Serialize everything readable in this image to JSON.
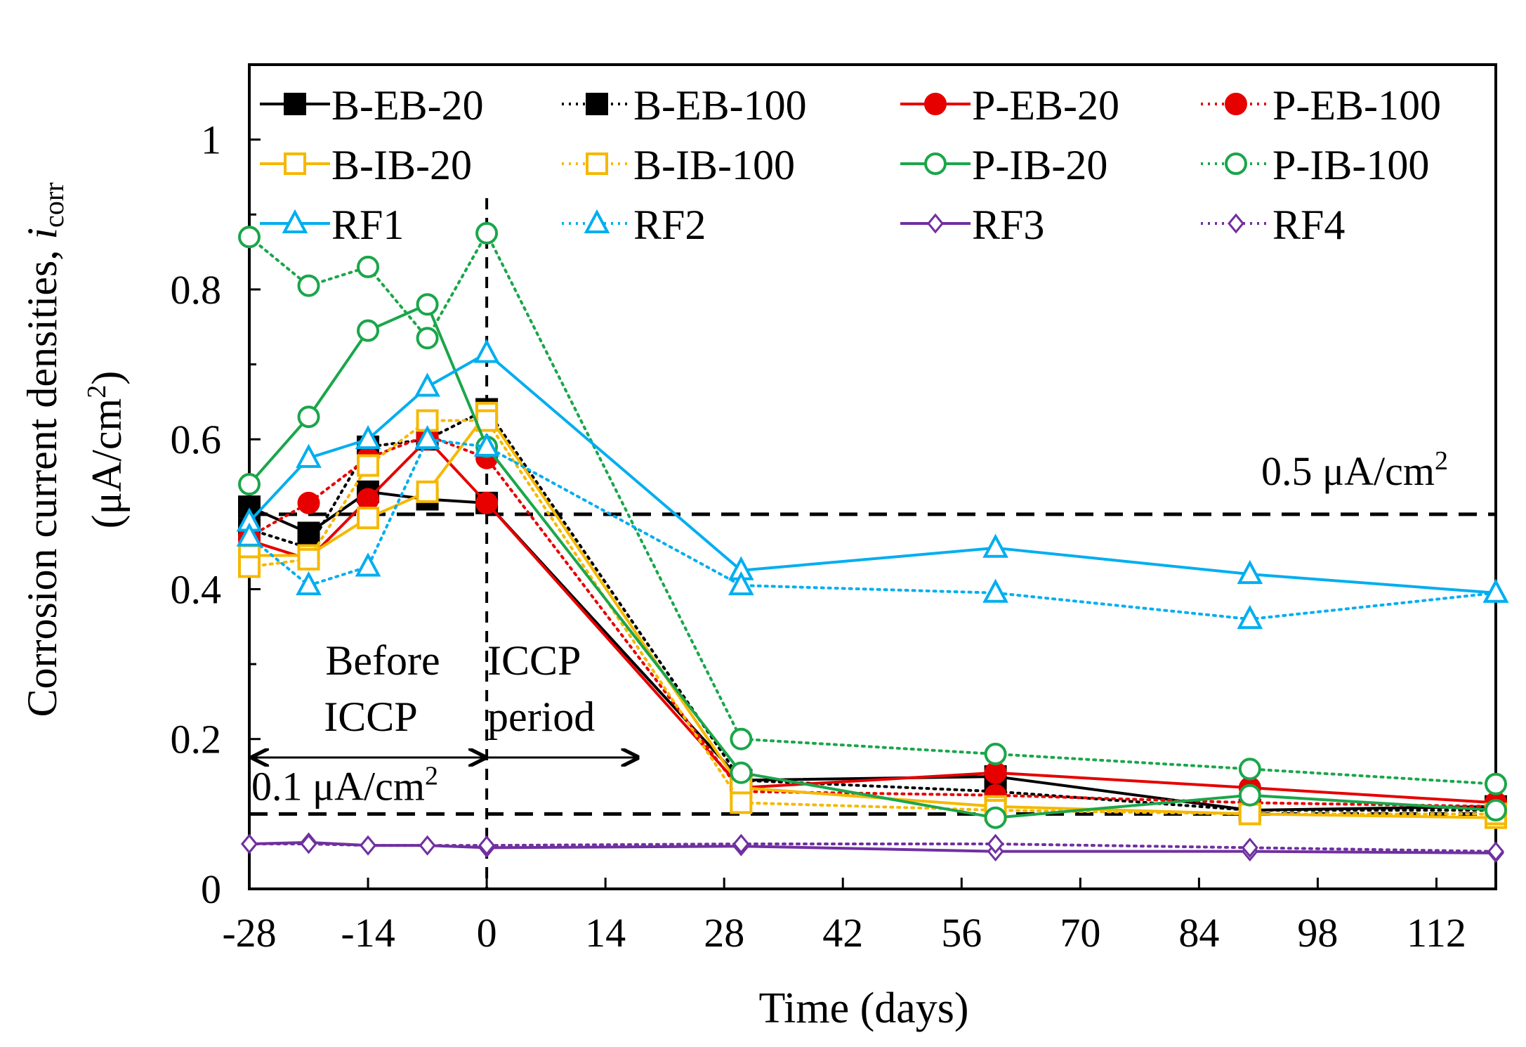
{
  "chart_data": {
    "type": "line",
    "xlabel": "Time (days)",
    "ylabel_line1_prefix": "Corrosion current densities, ",
    "ylabel_line1_var": "i",
    "ylabel_line1_sub": "corr",
    "ylabel_line2_prefix": "(μA/cm",
    "ylabel_line2_sup": "2",
    "ylabel_line2_suffix": ")",
    "xlim": [
      -28,
      119
    ],
    "ylim": [
      0,
      1.1
    ],
    "xticks": [
      -28,
      -14,
      0,
      14,
      28,
      42,
      56,
      70,
      84,
      98,
      112
    ],
    "yticks": [
      0,
      0.2,
      0.4,
      0.6,
      0.8,
      1
    ],
    "ytick_labels": [
      "0",
      "0.2",
      "0.4",
      "0.6",
      "0.8",
      "1"
    ],
    "grid": false,
    "legend_position": "top, inside plot, 4 columns",
    "reference_lines": [
      {
        "y": 0.5,
        "label": "0.5 μA/cm",
        "sup": "2"
      },
      {
        "y": 0.1,
        "label": "0.1 μA/cm",
        "sup": "2"
      }
    ],
    "vertical_line": {
      "x": 0
    },
    "annotations": [
      {
        "id": "before",
        "lines": [
          "Before",
          "ICCP"
        ]
      },
      {
        "id": "during",
        "lines": [
          "ICCP",
          "period"
        ]
      }
    ],
    "arrows": [
      {
        "from": -28,
        "to": 0,
        "double": true
      },
      {
        "from": 0,
        "to": 18,
        "double": false
      }
    ],
    "series": [
      {
        "name": "B-EB-20",
        "color": "#000000",
        "dash": "solid",
        "marker": "square",
        "fill": true,
        "x": [
          -28,
          -21,
          -14,
          -7,
          0,
          30,
          60,
          90,
          119
        ],
        "y": [
          0.51,
          0.475,
          0.53,
          0.52,
          0.515,
          0.145,
          0.15,
          0.105,
          0.11
        ]
      },
      {
        "name": "B-EB-100",
        "color": "#000000",
        "dash": "dotted",
        "marker": "square",
        "fill": true,
        "x": [
          -28,
          -21,
          -14,
          -7,
          0,
          30,
          60,
          90,
          119
        ],
        "y": [
          0.48,
          0.455,
          0.59,
          0.6,
          0.64,
          0.145,
          0.13,
          0.105,
          0.105
        ]
      },
      {
        "name": "P-EB-20",
        "color": "#e60000",
        "dash": "solid",
        "marker": "circle",
        "fill": true,
        "x": [
          -28,
          -21,
          -14,
          -7,
          0,
          30,
          60,
          90,
          119
        ],
        "y": [
          0.465,
          0.44,
          0.52,
          0.6,
          0.515,
          0.135,
          0.155,
          0.135,
          0.115
        ]
      },
      {
        "name": "P-EB-100",
        "color": "#e60000",
        "dash": "dotted",
        "marker": "circle",
        "fill": true,
        "x": [
          -28,
          -21,
          -14,
          -7,
          0,
          30,
          60,
          90,
          119
        ],
        "y": [
          0.47,
          0.515,
          0.575,
          0.605,
          0.575,
          0.13,
          0.125,
          0.115,
          0.11
        ]
      },
      {
        "name": "B-IB-20",
        "color": "#f5b800",
        "dash": "solid",
        "marker": "square",
        "fill": false,
        "x": [
          -28,
          -21,
          -14,
          -7,
          0,
          30,
          60,
          90,
          119
        ],
        "y": [
          0.445,
          0.445,
          0.495,
          0.53,
          0.635,
          0.135,
          0.11,
          0.1,
          0.095
        ]
      },
      {
        "name": "B-IB-100",
        "color": "#f5b800",
        "dash": "dotted",
        "marker": "square",
        "fill": false,
        "x": [
          -28,
          -21,
          -14,
          -7,
          0,
          30,
          60,
          90,
          119
        ],
        "y": [
          0.43,
          0.44,
          0.565,
          0.625,
          0.625,
          0.115,
          0.105,
          0.1,
          0.1
        ]
      },
      {
        "name": "P-IB-20",
        "color": "#1aa64a",
        "dash": "solid",
        "marker": "circle",
        "fill": false,
        "x": [
          -28,
          -21,
          -14,
          -7,
          0,
          30,
          60,
          90,
          119
        ],
        "y": [
          0.54,
          0.63,
          0.745,
          0.78,
          0.59,
          0.155,
          0.095,
          0.125,
          0.105
        ]
      },
      {
        "name": "P-IB-100",
        "color": "#1aa64a",
        "dash": "dotted",
        "marker": "circle",
        "fill": false,
        "x": [
          -28,
          -21,
          -14,
          -7,
          0,
          30,
          60,
          90,
          119
        ],
        "y": [
          0.87,
          0.805,
          0.83,
          0.735,
          0.875,
          0.2,
          0.18,
          0.16,
          0.14
        ]
      },
      {
        "name": "RF1",
        "color": "#00aeef",
        "dash": "solid",
        "marker": "triangle",
        "fill": false,
        "x": [
          -28,
          -21,
          -14,
          -7,
          0,
          30,
          60,
          90,
          119
        ],
        "y": [
          0.49,
          0.575,
          0.6,
          0.67,
          0.715,
          0.425,
          0.455,
          0.42,
          0.395
        ]
      },
      {
        "name": "RF2",
        "color": "#00aeef",
        "dash": "dotted",
        "marker": "triangle",
        "fill": false,
        "x": [
          -28,
          -21,
          -14,
          -7,
          0,
          30,
          60,
          90,
          119
        ],
        "y": [
          0.47,
          0.405,
          0.43,
          0.6,
          0.59,
          0.405,
          0.395,
          0.36,
          0.395
        ]
      },
      {
        "name": "RF3",
        "color": "#7030a0",
        "dash": "solid",
        "marker": "diamond",
        "fill": false,
        "x": [
          -28,
          -21,
          -14,
          -7,
          0,
          30,
          60,
          90,
          119
        ],
        "y": [
          0.06,
          0.062,
          0.058,
          0.058,
          0.055,
          0.057,
          0.05,
          0.05,
          0.048
        ]
      },
      {
        "name": "RF4",
        "color": "#7030a0",
        "dash": "dotted",
        "marker": "diamond",
        "fill": false,
        "x": [
          -28,
          -21,
          -14,
          -7,
          0,
          30,
          60,
          90,
          119
        ],
        "y": [
          0.06,
          0.06,
          0.058,
          0.058,
          0.058,
          0.06,
          0.06,
          0.055,
          0.05
        ]
      }
    ]
  }
}
